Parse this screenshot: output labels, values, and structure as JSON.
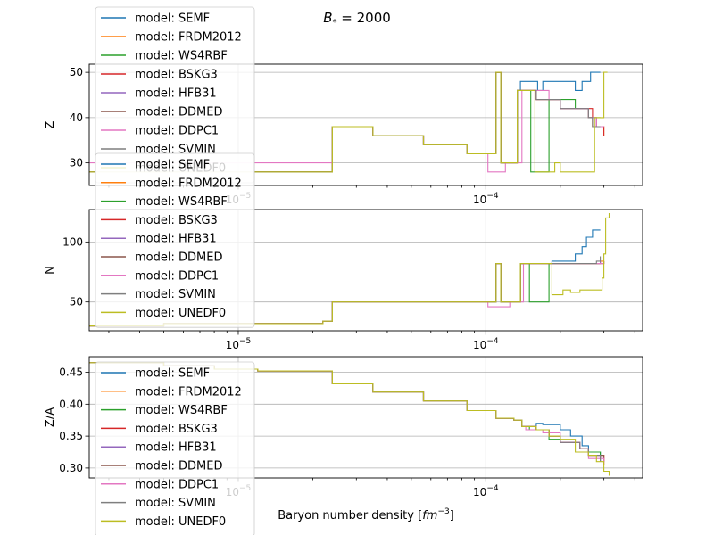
{
  "figure": {
    "title_prefix": "B",
    "title_sub": "*",
    "title_suffix": " = 2000",
    "xlabel_prefix": "Baryon number density [",
    "xlabel_unit": "fm",
    "xlabel_exp": "−3",
    "xlabel_suffix": "]"
  },
  "legend_labels": [
    "model: SEMF",
    "model: FRDM2012",
    "model: WS4RBF",
    "model: BSKG3",
    "model: HFB31",
    "model: DDMED",
    "model: DDPC1",
    "model: SVMIN",
    "model: UNEDF0"
  ],
  "colors": {
    "SEMF": "#1f77b4",
    "FRDM2012": "#ff7f0e",
    "WS4RBF": "#2ca02c",
    "BSKG3": "#d62728",
    "HFB31": "#9467bd",
    "DDMED": "#8c564b",
    "DDPC1": "#e377c2",
    "SVMIN": "#7f7f7f",
    "UNEDF0": "#bcbd22"
  },
  "chart_data": [
    {
      "type": "line",
      "ylabel": "Z",
      "xscale": "log",
      "xlim": [
        2.5e-06,
        0.00043
      ],
      "ylim": [
        25,
        51.8
      ],
      "xticks": [
        {
          "value": 1e-05,
          "base": "10",
          "exp": "−5"
        },
        {
          "value": 0.0001,
          "base": "10",
          "exp": "−4"
        }
      ],
      "yticks": [
        30,
        40,
        50
      ],
      "grid": true,
      "legend": "upper left",
      "base": [
        [
          2.5e-06,
          28
        ],
        [
          2.2e-05,
          28
        ],
        [
          2.4e-05,
          38
        ],
        [
          3.3e-05,
          38
        ],
        [
          3.5e-05,
          36
        ],
        [
          5.3e-05,
          36
        ],
        [
          5.6e-05,
          34
        ],
        [
          8e-05,
          34
        ],
        [
          8.4e-05,
          32
        ],
        [
          0.0001,
          32
        ],
        [
          0.00011,
          50
        ],
        [
          0.000115,
          30
        ],
        [
          0.00013,
          30
        ],
        [
          0.000134,
          46
        ],
        [
          0.000145,
          46
        ]
      ],
      "series": [
        {
          "name": "SEMF",
          "tail": [
            [
              0.000138,
              48
            ],
            [
              0.00016,
              48
            ],
            [
              0.000162,
              46
            ],
            [
              0.00017,
              48
            ],
            [
              0.00022,
              48
            ],
            [
              0.00023,
              46
            ],
            [
              0.00024,
              46
            ],
            [
              0.000245,
              48
            ],
            [
              0.00026,
              48
            ],
            [
              0.000265,
              50
            ],
            [
              0.00029,
              50
            ]
          ]
        },
        {
          "name": "FRDM2012",
          "tail": [
            [
              0.00016,
              44
            ],
            [
              0.00018,
              44
            ],
            [
              0.0002,
              42
            ],
            [
              0.00026,
              40
            ],
            [
              0.00027,
              38
            ],
            [
              0.00029,
              38
            ],
            [
              0.0003,
              36
            ]
          ]
        },
        {
          "name": "WS4RBF",
          "tail": [
            [
              0.000148,
              46
            ],
            [
              0.000152,
              28
            ],
            [
              0.000175,
              28
            ],
            [
              0.00018,
              44
            ],
            [
              0.00023,
              42
            ],
            [
              0.00026,
              40
            ],
            [
              0.00029,
              40
            ]
          ]
        },
        {
          "name": "BSKG3",
          "tail": [
            [
              0.00016,
              44
            ],
            [
              0.00018,
              44
            ],
            [
              0.0002,
              42
            ],
            [
              0.00027,
              40
            ],
            [
              0.00028,
              38
            ],
            [
              0.0003,
              36
            ]
          ]
        },
        {
          "name": "HFB31",
          "tail": [
            [
              0.00016,
              44
            ],
            [
              0.00018,
              44
            ],
            [
              0.0002,
              42
            ],
            [
              0.00026,
              40
            ],
            [
              0.00028,
              38
            ],
            [
              0.00029,
              38
            ]
          ]
        },
        {
          "name": "DDMED",
          "tail": [
            [
              0.00016,
              44
            ],
            [
              0.00018,
              44
            ],
            [
              0.0002,
              42
            ],
            [
              0.00026,
              40
            ],
            [
              0.00027,
              38
            ],
            [
              0.0003,
              38
            ]
          ]
        },
        {
          "name": "DDPC1",
          "pre": [
            [
              2.5e-06,
              30
            ],
            [
              2.2e-05,
              30
            ]
          ],
          "tail": [
            [
              0.0001,
              32
            ],
            [
              0.000102,
              28
            ],
            [
              0.000118,
              28
            ],
            [
              0.00012,
              30
            ],
            [
              0.000134,
              30
            ],
            [
              0.00014,
              46
            ],
            [
              0.00018,
              44
            ],
            [
              0.0002,
              42
            ],
            [
              0.00026,
              40
            ],
            [
              0.00028,
              38
            ],
            [
              0.0003,
              38
            ]
          ]
        },
        {
          "name": "SVMIN",
          "tail": [
            [
              0.00016,
              44
            ],
            [
              0.00018,
              44
            ],
            [
              0.0002,
              42
            ],
            [
              0.00026,
              40
            ],
            [
              0.00027,
              38
            ],
            [
              0.00029,
              38
            ]
          ]
        },
        {
          "name": "UNEDF0",
          "tail": [
            [
              0.000155,
              46
            ],
            [
              0.000158,
              28
            ],
            [
              0.000188,
              28
            ],
            [
              0.00019,
              30
            ],
            [
              0.0002,
              28
            ],
            [
              0.00027,
              28
            ],
            [
              0.000275,
              40
            ],
            [
              0.000295,
              40
            ],
            [
              0.0003,
              50
            ],
            [
              0.00031,
              50
            ]
          ]
        }
      ]
    },
    {
      "type": "line",
      "ylabel": "N",
      "xscale": "log",
      "xlim": [
        2.5e-06,
        0.00043
      ],
      "ylim": [
        26,
        127
      ],
      "xticks": [
        {
          "value": 1e-05,
          "base": "10",
          "exp": "−5"
        },
        {
          "value": 0.0001,
          "base": "10",
          "exp": "−4"
        }
      ],
      "yticks": [
        50,
        100
      ],
      "grid": true,
      "legend": "upper left",
      "base": [
        [
          2.5e-06,
          30
        ],
        [
          5e-06,
          32
        ],
        [
          2.2e-05,
          34
        ],
        [
          2.4e-05,
          50
        ],
        [
          0.000108,
          50
        ],
        [
          0.00011,
          82
        ],
        [
          0.000115,
          50
        ],
        [
          0.00013,
          50
        ],
        [
          0.000138,
          82
        ]
      ],
      "series": [
        {
          "name": "SEMF",
          "tail": [
            [
              0.00018,
              82
            ],
            [
              0.000185,
              84
            ],
            [
              0.00022,
              84
            ],
            [
              0.00023,
              90
            ],
            [
              0.000245,
              96
            ],
            [
              0.000255,
              104
            ],
            [
              0.00027,
              110
            ],
            [
              0.00029,
              110
            ]
          ]
        },
        {
          "name": "FRDM2012",
          "tail": [
            [
              0.00028,
              82
            ],
            [
              0.00029,
              84
            ],
            [
              0.0003,
              84
            ]
          ]
        },
        {
          "name": "WS4RBF",
          "tail": [
            [
              0.000145,
              82
            ],
            [
              0.00015,
              50
            ],
            [
              0.000175,
              50
            ],
            [
              0.00018,
              82
            ],
            [
              0.00029,
              82
            ]
          ]
        },
        {
          "name": "BSKG3",
          "tail": [
            [
              0.00028,
              82
            ],
            [
              0.0003,
              84
            ]
          ]
        },
        {
          "name": "HFB31",
          "tail": [
            [
              0.00028,
              82
            ],
            [
              0.00029,
              84
            ]
          ]
        },
        {
          "name": "DDMED",
          "tail": [
            [
              0.00028,
              82
            ],
            [
              0.0003,
              84
            ]
          ]
        },
        {
          "name": "DDPC1",
          "tail": [
            [
              0.0001,
              50
            ],
            [
              0.000102,
              46
            ],
            [
              0.00012,
              46
            ],
            [
              0.000125,
              50
            ],
            [
              0.000138,
              50
            ],
            [
              0.000142,
              82
            ],
            [
              0.00029,
              82
            ],
            [
              0.0003,
              84
            ]
          ]
        },
        {
          "name": "SVMIN",
          "tail": [
            [
              0.00028,
              84
            ],
            [
              0.00029,
              88
            ]
          ]
        },
        {
          "name": "UNEDF0",
          "tail": [
            [
              0.00018,
              82
            ],
            [
              0.000185,
              56
            ],
            [
              0.0002,
              56
            ],
            [
              0.000205,
              60
            ],
            [
              0.00022,
              58
            ],
            [
              0.00024,
              60
            ],
            [
              0.00029,
              60
            ],
            [
              0.000295,
              70
            ],
            [
              0.0003,
              90
            ],
            [
              0.000305,
              120
            ],
            [
              0.000315,
              124
            ]
          ]
        }
      ]
    },
    {
      "type": "line",
      "ylabel": "Z/A",
      "xscale": "log",
      "xlim": [
        2.5e-06,
        0.00043
      ],
      "ylim": [
        0.2845,
        0.4745
      ],
      "xticks": [
        {
          "value": 1e-05,
          "base": "10",
          "exp": "−5"
        },
        {
          "value": 0.0001,
          "base": "10",
          "exp": "−4"
        }
      ],
      "yticks": [
        0.3,
        0.35,
        0.4,
        0.45
      ],
      "ytick_labels": [
        "0.30",
        "0.35",
        "0.40",
        "0.45"
      ],
      "grid": true,
      "legend": "upper left",
      "base": [
        [
          2.5e-06,
          0.465
        ],
        [
          5e-06,
          0.46
        ],
        [
          8e-06,
          0.455
        ],
        [
          1.2e-05,
          0.452
        ],
        [
          2.2e-05,
          0.452
        ],
        [
          2.4e-05,
          0.432
        ],
        [
          3.3e-05,
          0.432
        ],
        [
          3.5e-05,
          0.419
        ],
        [
          5.3e-05,
          0.419
        ],
        [
          5.6e-05,
          0.405
        ],
        [
          8e-05,
          0.405
        ],
        [
          8.4e-05,
          0.39
        ],
        [
          0.000105,
          0.39
        ],
        [
          0.00011,
          0.378
        ],
        [
          0.00013,
          0.375
        ],
        [
          0.00014,
          0.365
        ]
      ],
      "series": [
        {
          "name": "SEMF",
          "tail": [
            [
              0.00016,
              0.37
            ],
            [
              0.00017,
              0.368
            ],
            [
              0.0002,
              0.36
            ],
            [
              0.00022,
              0.35
            ],
            [
              0.000245,
              0.335
            ],
            [
              0.00026,
              0.325
            ],
            [
              0.00029,
              0.31
            ]
          ]
        },
        {
          "name": "FRDM2012",
          "tail": [
            [
              0.00016,
              0.36
            ],
            [
              0.00018,
              0.35
            ],
            [
              0.0002,
              0.34
            ],
            [
              0.00024,
              0.33
            ],
            [
              0.00026,
              0.32
            ],
            [
              0.0003,
              0.31
            ]
          ]
        },
        {
          "name": "WS4RBF",
          "tail": [
            [
              0.00015,
              0.36
            ],
            [
              0.00018,
              0.345
            ],
            [
              0.0002,
              0.34
            ],
            [
              0.00024,
              0.33
            ],
            [
              0.00026,
              0.325
            ],
            [
              0.00029,
              0.315
            ]
          ]
        },
        {
          "name": "BSKG3",
          "tail": [
            [
              0.00016,
              0.36
            ],
            [
              0.00018,
              0.35
            ],
            [
              0.0002,
              0.34
            ],
            [
              0.00024,
              0.33
            ],
            [
              0.00026,
              0.32
            ],
            [
              0.0003,
              0.305
            ]
          ]
        },
        {
          "name": "HFB31",
          "tail": [
            [
              0.00016,
              0.36
            ],
            [
              0.00018,
              0.35
            ],
            [
              0.0002,
              0.34
            ],
            [
              0.00024,
              0.33
            ],
            [
              0.00026,
              0.32
            ],
            [
              0.00029,
              0.31
            ]
          ]
        },
        {
          "name": "DDMED",
          "tail": [
            [
              0.00016,
              0.36
            ],
            [
              0.00018,
              0.35
            ],
            [
              0.0002,
              0.34
            ],
            [
              0.00024,
              0.33
            ],
            [
              0.00026,
              0.32
            ],
            [
              0.0003,
              0.31
            ]
          ]
        },
        {
          "name": "DDPC1",
          "tail": [
            [
              0.000145,
              0.36
            ],
            [
              0.00017,
              0.355
            ],
            [
              0.0002,
              0.34
            ],
            [
              0.00024,
              0.33
            ],
            [
              0.00026,
              0.315
            ],
            [
              0.0003,
              0.305
            ]
          ]
        },
        {
          "name": "SVMIN",
          "tail": [
            [
              0.00016,
              0.36
            ],
            [
              0.00018,
              0.35
            ],
            [
              0.0002,
              0.34
            ],
            [
              0.00024,
              0.33
            ],
            [
              0.00026,
              0.32
            ],
            [
              0.00029,
              0.31
            ]
          ]
        },
        {
          "name": "UNEDF0",
          "tail": [
            [
              0.00016,
              0.36
            ],
            [
              0.00018,
              0.35
            ],
            [
              0.0002,
              0.345
            ],
            [
              0.00023,
              0.325
            ],
            [
              0.00026,
              0.32
            ],
            [
              0.00028,
              0.31
            ],
            [
              0.0003,
              0.295
            ],
            [
              0.000315,
              0.288
            ]
          ]
        }
      ]
    }
  ]
}
